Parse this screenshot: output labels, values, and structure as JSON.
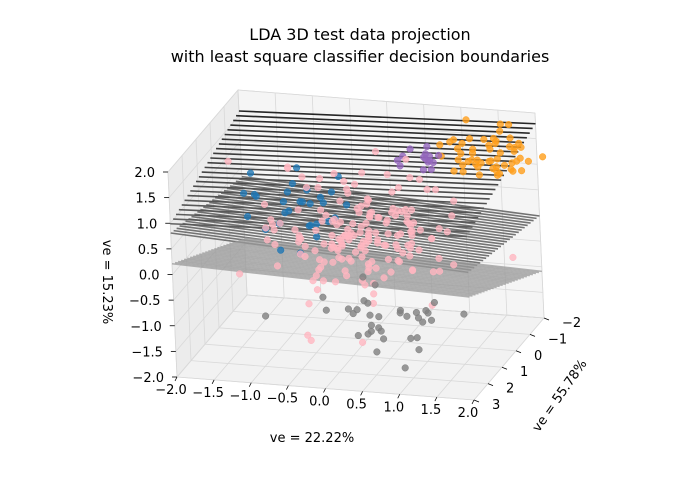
{
  "chart_data": {
    "type": "scatter",
    "projection": "3d",
    "title": "LDA 3D test data projection\nwith least square classifier decision boundaries",
    "title_lines": [
      "LDA 3D test data projection",
      "with least square classifier decision boundaries"
    ],
    "xlabel": "ve = 22.22%",
    "ylabel": "ve = 55.78%",
    "zlabel": "ve = 15.23%",
    "xlim": [
      -2.0,
      2.0
    ],
    "ylim": [
      -2.0,
      3.0
    ],
    "zlim": [
      -2.0,
      2.0
    ],
    "x_ticks": [
      "−2.0",
      "−1.5",
      "−1.0",
      "−0.5",
      "0.0",
      "0.5",
      "1.0",
      "1.5",
      "2.0"
    ],
    "y_ticks": [
      "−2",
      "−1",
      "0",
      "1",
      "2",
      "3"
    ],
    "z_ticks": [
      "−2.0",
      "−1.5",
      "−1.0",
      "−0.5",
      "0.0",
      "0.5",
      "1.0",
      "1.5",
      "2.0"
    ],
    "grid": true,
    "surfaces": 3,
    "series": [
      {
        "color": "#1f77b4",
        "center": [
          -1.0,
          -0.5,
          0.3
        ],
        "spread": [
          0.35,
          0.6,
          0.35
        ],
        "count": 30
      },
      {
        "color": "#ff9f1c",
        "center": [
          1.5,
          -1.2,
          1.4
        ],
        "spread": [
          0.35,
          0.5,
          0.2
        ],
        "count": 55
      },
      {
        "color": "#9467bd",
        "center": [
          0.6,
          -1.0,
          1.3
        ],
        "spread": [
          0.2,
          0.3,
          0.15
        ],
        "count": 15
      },
      {
        "color": "#ffb6c1",
        "center": [
          0.1,
          0.6,
          0.2
        ],
        "spread": [
          0.6,
          0.9,
          0.55
        ],
        "count": 180
      },
      {
        "color": "#808080",
        "center": [
          0.6,
          2.0,
          -0.9
        ],
        "spread": [
          0.5,
          0.7,
          0.3
        ],
        "count": 35
      }
    ],
    "colors": {
      "blue": "#1f77b4",
      "orange": "#ff9f1c",
      "purple": "#9467bd",
      "pink": "#ffb6c1",
      "gray": "#808080"
    }
  }
}
